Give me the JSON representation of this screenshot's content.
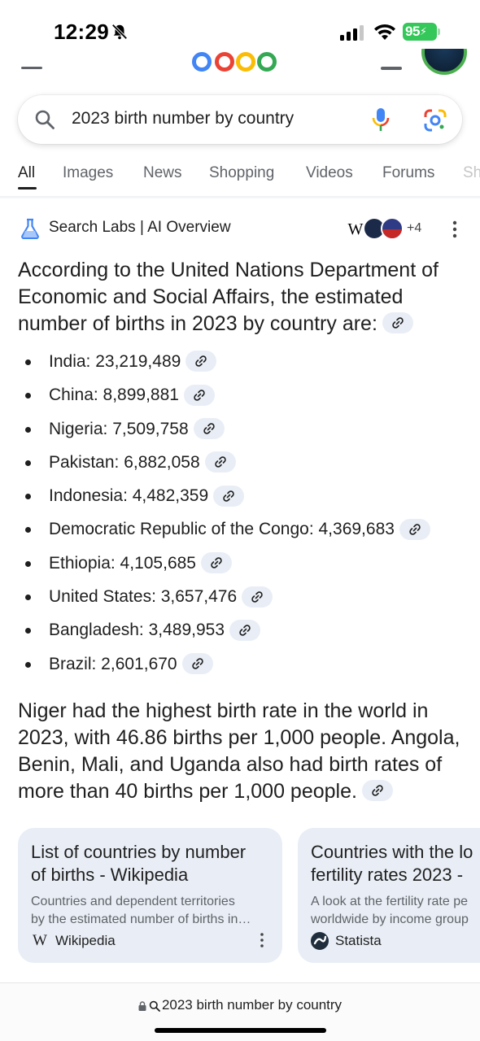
{
  "status_bar": {
    "time": "12:29",
    "battery": "95"
  },
  "search": {
    "query": "2023 birth number by country"
  },
  "tabs": [
    {
      "label": "All",
      "active": true
    },
    {
      "label": "Images"
    },
    {
      "label": "News"
    },
    {
      "label": "Shopping"
    },
    {
      "label": "Videos"
    },
    {
      "label": "Forums"
    },
    {
      "label": "Sh"
    }
  ],
  "ai_overview": {
    "title": "Search Labs | AI Overview",
    "source_w": "W",
    "more_sources": "+4",
    "intro": "According to the United Nations Department of Economic and Social Affairs, the estimated number of births in 2023 by country are:",
    "items": [
      "India: 23,219,489",
      "China: 8,899,881",
      "Nigeria: 7,509,758",
      "Pakistan: 6,882,058",
      "Indonesia: 4,482,359",
      "Democratic Republic of the Congo: 4,369,683",
      "Ethiopia: 4,105,685",
      "United States: 3,657,476",
      "Bangladesh: 3,489,953",
      "Brazil: 2,601,670"
    ],
    "paragraph": "Niger had the highest birth rate in the world in 2023, with 46.86 births per 1,000 people. Angola, Benin, Mali, and Uganda also had birth rates of more than 40 births per 1,000 people."
  },
  "cards": [
    {
      "title_line1": "List of countries by number",
      "title_line2": "of births - Wikipedia",
      "desc_line1": "Countries and dependent territories",
      "desc_line2": "by the estimated number of births in…",
      "source": "Wikipedia",
      "favicon": "W"
    },
    {
      "title_line1": "Countries with the lo",
      "title_line2": "fertility rates 2023 -",
      "desc_line1": "A look at the fertility rate pe",
      "desc_line2": "worldwide by income group",
      "source": "Statista"
    }
  ],
  "bottom_bar": {
    "url_text": "2023 birth number by country"
  },
  "colors": {
    "chip_bg": "#e9eef6",
    "card_bg": "#e9eef6",
    "battery_green": "#34c759"
  }
}
